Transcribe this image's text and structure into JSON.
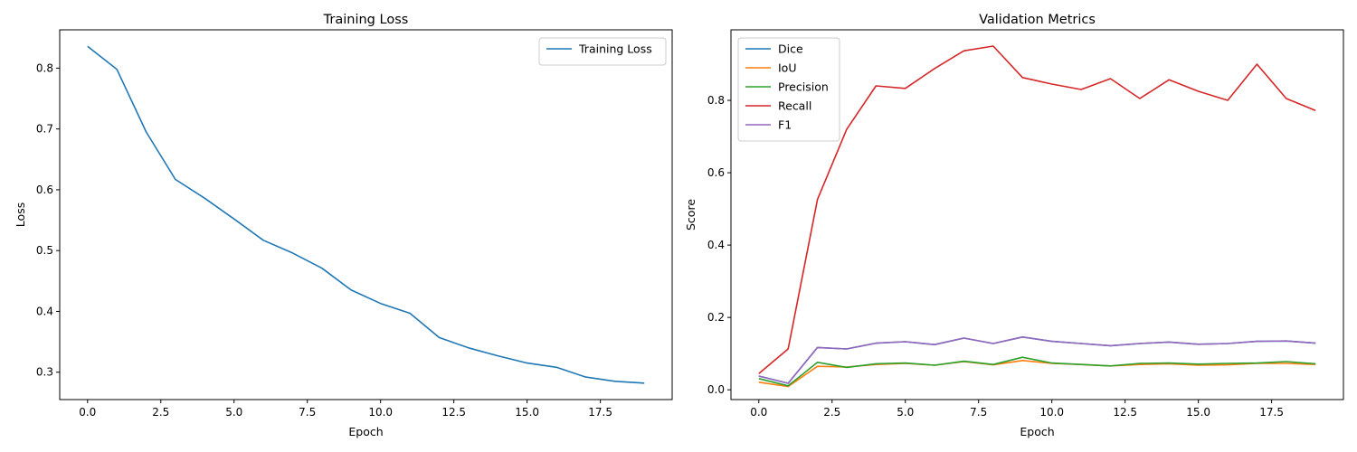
{
  "chart_data": [
    {
      "type": "line",
      "title": "Training Loss",
      "xlabel": "Epoch",
      "ylabel": "Loss",
      "xlim": [
        -0.95,
        19.95
      ],
      "ylim": [
        0.255,
        0.863
      ],
      "xticks": [
        0,
        2.5,
        5,
        7.5,
        10,
        12.5,
        15,
        17.5
      ],
      "xtick_labels": [
        "0.0",
        "2.5",
        "5.0",
        "7.5",
        "10.0",
        "12.5",
        "15.0",
        "17.5"
      ],
      "yticks": [
        0.3,
        0.4,
        0.5,
        0.6,
        0.7,
        0.8
      ],
      "ytick_labels": [
        "0.3",
        "0.4",
        "0.5",
        "0.6",
        "0.7",
        "0.8"
      ],
      "legend_position": "upper right",
      "x": [
        0,
        1,
        2,
        3,
        4,
        5,
        6,
        7,
        8,
        9,
        10,
        11,
        12,
        13,
        14,
        15,
        16,
        17,
        18,
        19
      ],
      "series": [
        {
          "name": "Training Loss",
          "color": "#1f77b4",
          "values": [
            0.836,
            0.798,
            0.695,
            0.617,
            0.586,
            0.552,
            0.517,
            0.496,
            0.471,
            0.435,
            0.413,
            0.397,
            0.357,
            0.34,
            0.327,
            0.315,
            0.308,
            0.292,
            0.285,
            0.282
          ]
        }
      ]
    },
    {
      "type": "line",
      "title": "Validation Metrics",
      "xlabel": "Epoch",
      "ylabel": "Score",
      "xlim": [
        -0.95,
        19.95
      ],
      "ylim": [
        -0.027,
        0.995
      ],
      "xticks": [
        0,
        2.5,
        5,
        7.5,
        10,
        12.5,
        15,
        17.5
      ],
      "xtick_labels": [
        "0.0",
        "2.5",
        "5.0",
        "7.5",
        "10.0",
        "12.5",
        "15.0",
        "17.5"
      ],
      "yticks": [
        0.0,
        0.2,
        0.4,
        0.6,
        0.8
      ],
      "ytick_labels": [
        "0.0",
        "0.2",
        "0.4",
        "0.6",
        "0.8"
      ],
      "legend_position": "upper left",
      "x": [
        0,
        1,
        2,
        3,
        4,
        5,
        6,
        7,
        8,
        9,
        10,
        11,
        12,
        13,
        14,
        15,
        16,
        17,
        18,
        19
      ],
      "series": [
        {
          "name": "Dice",
          "color": "#1f77b4",
          "values": [
            0.038,
            0.018,
            0.117,
            0.113,
            0.129,
            0.133,
            0.125,
            0.143,
            0.128,
            0.146,
            0.134,
            0.128,
            0.122,
            0.128,
            0.132,
            0.126,
            0.128,
            0.134,
            0.135,
            0.129
          ]
        },
        {
          "name": "IoU",
          "color": "#ff7f0e",
          "values": [
            0.021,
            0.009,
            0.065,
            0.063,
            0.07,
            0.073,
            0.068,
            0.078,
            0.069,
            0.081,
            0.073,
            0.07,
            0.066,
            0.07,
            0.072,
            0.068,
            0.069,
            0.073,
            0.073,
            0.07
          ]
        },
        {
          "name": "Precision",
          "color": "#2ca02c",
          "values": [
            0.031,
            0.011,
            0.076,
            0.062,
            0.072,
            0.074,
            0.068,
            0.079,
            0.07,
            0.09,
            0.074,
            0.07,
            0.066,
            0.073,
            0.074,
            0.071,
            0.073,
            0.074,
            0.078,
            0.072
          ]
        },
        {
          "name": "Recall",
          "color": "#d62728",
          "values": [
            0.045,
            0.113,
            0.526,
            0.72,
            0.84,
            0.833,
            0.888,
            0.937,
            0.95,
            0.863,
            0.845,
            0.83,
            0.86,
            0.805,
            0.857,
            0.825,
            0.8,
            0.9,
            0.805,
            0.772
          ]
        },
        {
          "name": "F1",
          "color": "#9467bd",
          "values": [
            0.038,
            0.018,
            0.117,
            0.113,
            0.129,
            0.133,
            0.125,
            0.143,
            0.128,
            0.146,
            0.134,
            0.128,
            0.122,
            0.128,
            0.132,
            0.126,
            0.128,
            0.134,
            0.135,
            0.129
          ]
        }
      ]
    }
  ]
}
